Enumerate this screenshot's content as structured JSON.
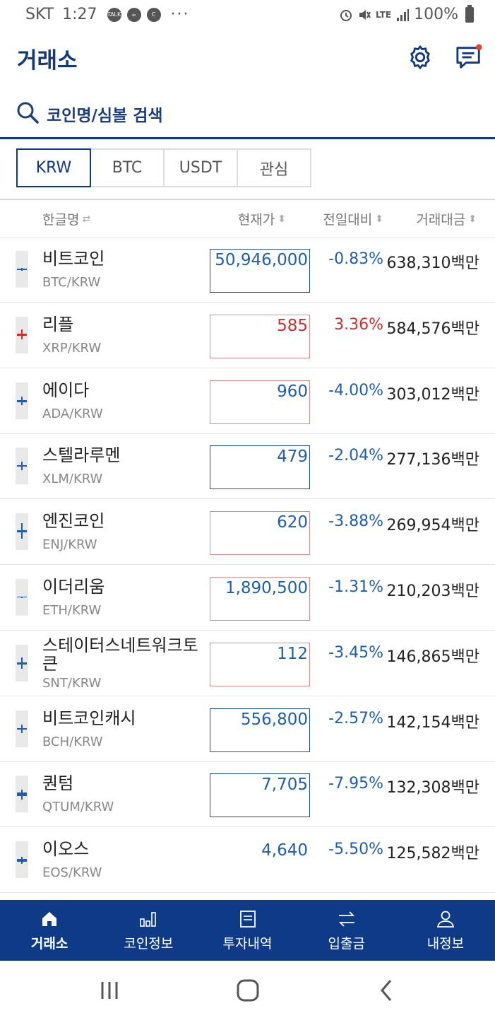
{
  "status_bar": {
    "carrier": "SKT",
    "time": "1:27",
    "battery": "100%",
    "network": "LTE"
  },
  "header": {
    "title": "거래소"
  },
  "search": {
    "placeholder": "코인명/심볼 검색"
  },
  "tabs": [
    {
      "label": "KRW",
      "active": true
    },
    {
      "label": "BTC",
      "active": false
    },
    {
      "label": "USDT",
      "active": false
    },
    {
      "label": "관심",
      "active": false
    }
  ],
  "columns": {
    "name": "한글명",
    "price": "현재가",
    "change": "전일대비",
    "volume": "거래대금"
  },
  "colors": {
    "brand": "#0f3a87",
    "down": "#1f5ea8",
    "up": "#c9302c"
  },
  "coins": [
    {
      "name": "비트코인",
      "symbol": "BTC/KRW",
      "price": "50,946,000",
      "change": "-0.83%",
      "volume": "638,310백만",
      "direction": "down"
    },
    {
      "name": "리플",
      "symbol": "XRP/KRW",
      "price": "585",
      "change": "3.36%",
      "volume": "584,576백만",
      "direction": "up"
    },
    {
      "name": "에이다",
      "symbol": "ADA/KRW",
      "price": "960",
      "change": "-4.00%",
      "volume": "303,012백만",
      "direction": "down"
    },
    {
      "name": "스텔라루멘",
      "symbol": "XLM/KRW",
      "price": "479",
      "change": "-2.04%",
      "volume": "277,136백만",
      "direction": "down"
    },
    {
      "name": "엔진코인",
      "symbol": "ENJ/KRW",
      "price": "620",
      "change": "-3.88%",
      "volume": "269,954백만",
      "direction": "down"
    },
    {
      "name": "이더리움",
      "symbol": "ETH/KRW",
      "price": "1,890,500",
      "change": "-1.31%",
      "volume": "210,203백만",
      "direction": "down"
    },
    {
      "name": "스테이터스네트워크토큰",
      "symbol": "SNT/KRW",
      "price": "112",
      "change": "-3.45%",
      "volume": "146,865백만",
      "direction": "down"
    },
    {
      "name": "비트코인캐시",
      "symbol": "BCH/KRW",
      "price": "556,800",
      "change": "-2.57%",
      "volume": "142,154백만",
      "direction": "down"
    },
    {
      "name": "퀀텀",
      "symbol": "QTUM/KRW",
      "price": "7,705",
      "change": "-7.95%",
      "volume": "132,308백만",
      "direction": "down"
    },
    {
      "name": "이오스",
      "symbol": "EOS/KRW",
      "price": "4,640",
      "change": "-5.50%",
      "volume": "125,582백만",
      "direction": "down"
    }
  ],
  "bottom_nav": [
    {
      "label": "거래소",
      "icon": "home-icon",
      "active": true
    },
    {
      "label": "코인정보",
      "icon": "bar-chart-icon",
      "active": false
    },
    {
      "label": "투자내역",
      "icon": "document-icon",
      "active": false
    },
    {
      "label": "입출금",
      "icon": "transfer-icon",
      "active": false
    },
    {
      "label": "내정보",
      "icon": "person-icon",
      "active": false
    }
  ]
}
